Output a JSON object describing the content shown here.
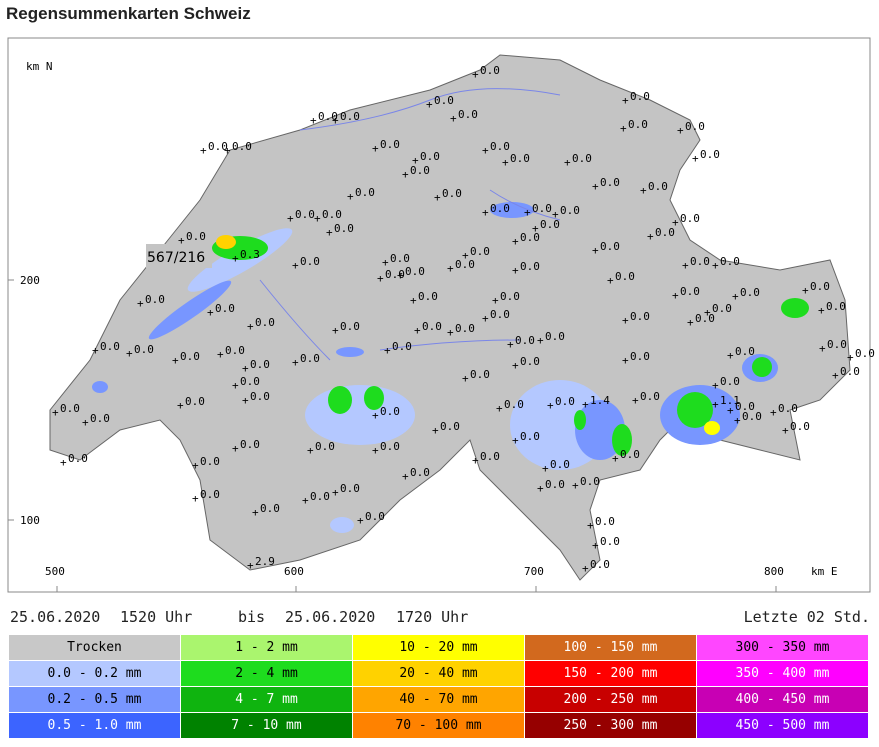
{
  "header": {
    "title": "Regensummenkarten Schweiz"
  },
  "map": {
    "axis_labels": {
      "north": "km N",
      "east": "km E"
    },
    "y_ticks": [
      "200",
      "100"
    ],
    "x_ticks": [
      "500",
      "600",
      "700",
      "800"
    ],
    "callout": "567/216",
    "stations": [
      "0.0",
      "0.0",
      "0.0",
      "0.0",
      "0.0",
      "0.0",
      "0.0",
      "0.0",
      "0.0",
      "0.0",
      "0.0",
      "0.0",
      "0.0",
      "0.0",
      "0.0",
      "0.0",
      "0.0",
      "0.0",
      "0.0",
      "0.0",
      "0.0",
      "0.0",
      "0.0",
      "0.0",
      "0.0",
      "0.0",
      "0.0",
      "0.0",
      "0.0",
      "0.0",
      "0.0",
      "0.0",
      "0.0",
      "0.0",
      "0.0",
      "0.0",
      "0.0",
      "0.0",
      "0.0",
      "0.0",
      "0.0",
      "0.0",
      "0.0",
      "0.0",
      "0.0",
      "0.0",
      "0.0",
      "0.0",
      "0.0",
      "0.0",
      "0.0",
      "0.0",
      "0.0",
      "0.0",
      "0.0",
      "0.0",
      "0.0",
      "0.0",
      "0.0",
      "0.0",
      "0.0",
      "0.0",
      "0.0",
      "0.0",
      "0.0",
      "0.0",
      "0.0",
      "0.0",
      "0.0",
      "0.0",
      "0.0",
      "0.0",
      "0.0",
      "0.0",
      "0.0",
      "0.0",
      "0.0",
      "0.0",
      "0.0",
      "0.0",
      "0.0",
      "0.0",
      "0.0",
      "0.0",
      "0.0",
      "0.0",
      "0.0",
      "0.0",
      "0.0",
      "0.0",
      "0.0",
      "0.0",
      "0.0",
      "0.0",
      "0.0",
      "0.0",
      "0.0",
      "0.0",
      "0.0",
      "0.0",
      "0.0",
      "0.0",
      "0.0",
      "0.0",
      "0.0",
      "0.0",
      "0.0",
      "0.0",
      "0.0",
      "2.9",
      "0.3",
      "1.4",
      "1.1",
      "0.0"
    ]
  },
  "period": {
    "from_date": "25.06.2020",
    "from_time": "1520 Uhr",
    "separator": "bis",
    "to_date": "25.06.2020",
    "to_time": "1720 Uhr",
    "duration": "Letzte 02 Std."
  },
  "legend": {
    "rows": [
      [
        {
          "label": "Trocken",
          "color": "#c8c8c8"
        },
        {
          "label": "1 - 2 mm",
          "color": "#aaf56e"
        },
        {
          "label": "10 - 20 mm",
          "color": "#ffff00"
        },
        {
          "label": "100 - 150 mm",
          "color": "#d2691e"
        },
        {
          "label": "300 - 350 mm",
          "color": "#ff46ff"
        }
      ],
      [
        {
          "label": "0.0 - 0.2 mm",
          "color": "#b4c8ff"
        },
        {
          "label": "2 - 4 mm",
          "color": "#1edc1e"
        },
        {
          "label": "20 - 40 mm",
          "color": "#ffd200"
        },
        {
          "label": "150 - 200 mm",
          "color": "#ff0000"
        },
        {
          "label": "350 - 400 mm",
          "color": "#ff00ff"
        }
      ],
      [
        {
          "label": "0.2 - 0.5 mm",
          "color": "#7896ff"
        },
        {
          "label": "4 - 7 mm",
          "color": "#0fb40f"
        },
        {
          "label": "40 - 70 mm",
          "color": "#ffa500"
        },
        {
          "label": "200 - 250 mm",
          "color": "#c80000"
        },
        {
          "label": "400 - 450 mm",
          "color": "#c800b4"
        }
      ],
      [
        {
          "label": "0.5 - 1.0 mm",
          "color": "#3c64ff"
        },
        {
          "label": "7 - 10 mm",
          "color": "#008200"
        },
        {
          "label": "70 - 100 mm",
          "color": "#ff8200"
        },
        {
          "label": "250 - 300 mm",
          "color": "#960000"
        },
        {
          "label": "450 - 500 mm",
          "color": "#8c00ff"
        }
      ]
    ]
  }
}
